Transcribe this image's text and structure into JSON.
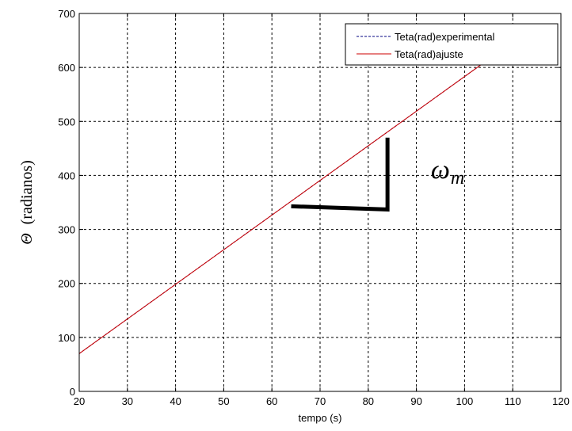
{
  "chart_data": {
    "type": "line",
    "xlabel": "tempo (s)",
    "ylabel_symbol": "Θ",
    "ylabel_text": "(radianos)",
    "xlim": [
      20,
      120
    ],
    "ylim": [
      0,
      700
    ],
    "xticks": [
      20,
      30,
      40,
      50,
      60,
      70,
      80,
      90,
      100,
      110,
      120
    ],
    "yticks": [
      0,
      100,
      200,
      300,
      400,
      500,
      600,
      700
    ],
    "grid": true,
    "legend_position": "top-right",
    "series": [
      {
        "name": "Teta(rad)experimental",
        "style": "dashed",
        "color": "#000080",
        "x": [
          20,
          104.5
        ],
        "y": [
          70,
          612
        ]
      },
      {
        "name": "Teta(rad)ajuste",
        "style": "solid",
        "color": "#cc0000",
        "x": [
          20,
          104.5
        ],
        "y": [
          70,
          612
        ]
      }
    ],
    "annotations": [
      {
        "type": "slope-triangle",
        "corner": [
          84,
          337
        ],
        "horizontal_start_x": 64,
        "vertical_end_y": 470,
        "color": "#000000"
      },
      {
        "type": "text",
        "symbol": "ω",
        "subscript": "m",
        "x": 93,
        "y": 395
      }
    ]
  }
}
